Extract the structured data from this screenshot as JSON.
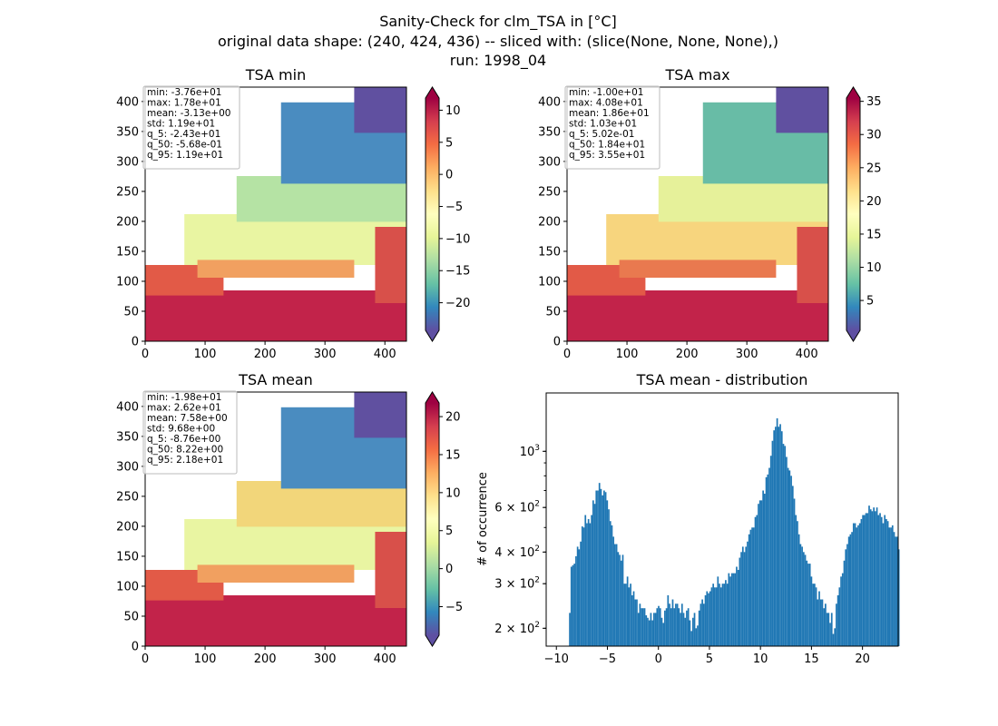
{
  "figure": {
    "title_lines": [
      "Sanity-Check for clm_TSA in [°C]",
      "original data shape: (240, 424, 436) -- sliced with: (slice(None, None, None),)",
      "run: 1998_04"
    ]
  },
  "chart_data": [
    {
      "type": "heatmap",
      "title": "TSA min",
      "xlim": [
        0,
        436
      ],
      "ylim": [
        0,
        424
      ],
      "xticks": [
        "0",
        "100",
        "200",
        "300",
        "400"
      ],
      "yticks": [
        "0",
        "50",
        "100",
        "150",
        "200",
        "250",
        "300",
        "350",
        "400"
      ],
      "colorbar": {
        "colormap": "Spectral_r",
        "vmin": -24.3,
        "vmax": 11.9,
        "ticks": [
          "−20",
          "−15",
          "−10",
          "−5",
          "0",
          "5",
          "10"
        ],
        "extend": "both"
      },
      "stats": [
        "min: -3.76e+01",
        "max: 1.78e+01",
        "mean: -3.13e+00",
        "std: 1.19e+01",
        "q_5: -2.43e+01",
        "q_50: -5.68e-01",
        "q_95: 1.19e+01"
      ]
    },
    {
      "type": "heatmap",
      "title": "TSA max",
      "xlim": [
        0,
        436
      ],
      "ylim": [
        0,
        424
      ],
      "xticks": [
        "0",
        "100",
        "200",
        "300",
        "400"
      ],
      "yticks": [
        "0",
        "50",
        "100",
        "150",
        "200",
        "250",
        "300",
        "350",
        "400"
      ],
      "colorbar": {
        "colormap": "Spectral_r",
        "vmin": 0.502,
        "vmax": 35.5,
        "ticks": [
          "5",
          "10",
          "15",
          "20",
          "25",
          "30",
          "35"
        ],
        "extend": "both"
      },
      "stats": [
        "min: -1.00e+01",
        "max: 4.08e+01",
        "mean: 1.86e+01",
        "std: 1.03e+01",
        "q_5: 5.02e-01",
        "q_50: 1.84e+01",
        "q_95: 3.55e+01"
      ]
    },
    {
      "type": "heatmap",
      "title": "TSA mean",
      "xlim": [
        0,
        436
      ],
      "ylim": [
        0,
        424
      ],
      "xticks": [
        "0",
        "100",
        "200",
        "300",
        "400"
      ],
      "yticks": [
        "0",
        "50",
        "100",
        "150",
        "200",
        "250",
        "300",
        "350",
        "400"
      ],
      "colorbar": {
        "colormap": "Spectral_r",
        "vmin": -8.76,
        "vmax": 21.8,
        "ticks": [
          "−5",
          "0",
          "5",
          "10",
          "15",
          "20"
        ],
        "extend": "both"
      },
      "stats": [
        "min: -1.98e+01",
        "max: 2.62e+01",
        "mean: 7.58e+00",
        "std: 9.68e+00",
        "q_5: -8.76e+00",
        "q_50: 8.22e+00",
        "q_95: 2.18e+01"
      ]
    },
    {
      "type": "bar",
      "title": "TSA mean - distribution",
      "ylabel": "# of occurrence",
      "yscale": "log",
      "xlim": [
        -11,
        23.5
      ],
      "ylim": [
        170,
        1700
      ],
      "color": "#1f77b4",
      "xticks": [
        "−10",
        "−5",
        "0",
        "5",
        "10",
        "15",
        "20"
      ],
      "yticks": [
        {
          "base": "2 × 10",
          "exp": "2",
          "value": 200
        },
        {
          "base": "3 × 10",
          "exp": "2",
          "value": 300
        },
        {
          "base": "4 × 10",
          "exp": "2",
          "value": 400
        },
        {
          "base": "6 × 10",
          "exp": "2",
          "value": 600
        },
        {
          "base": "10",
          "exp": "3",
          "value": 1000
        }
      ],
      "bin_start": -8.76,
      "bin_width": 0.1528,
      "values": [
        230,
        350,
        355,
        360,
        385,
        420,
        410,
        440,
        505,
        500,
        560,
        520,
        540,
        520,
        560,
        640,
        620,
        700,
        700,
        750,
        710,
        670,
        700,
        690,
        640,
        590,
        530,
        510,
        460,
        430,
        430,
        400,
        390,
        370,
        390,
        300,
        300,
        320,
        290,
        300,
        270,
        280,
        260,
        260,
        230,
        250,
        240,
        240,
        240,
        225,
        220,
        215,
        230,
        215,
        230,
        230,
        240,
        245,
        240,
        220,
        210,
        235,
        240,
        270,
        250,
        240,
        260,
        240,
        250,
        250,
        240,
        230,
        250,
        230,
        220,
        235,
        240,
        215,
        195,
        220,
        230,
        200,
        205,
        235,
        250,
        260,
        250,
        270,
        280,
        275,
        280,
        290,
        300,
        290,
        290,
        320,
        300,
        290,
        300,
        300,
        310,
        300,
        330,
        320,
        330,
        330,
        330,
        350,
        340,
        380,
        400,
        420,
        400,
        420,
        440,
        470,
        490,
        500,
        500,
        550,
        560,
        620,
        640,
        640,
        700,
        680,
        790,
        810,
        860,
        960,
        1100,
        1210,
        1250,
        1350,
        1250,
        1280,
        1200,
        1070,
        1050,
        950,
        860,
        840,
        800,
        730,
        650,
        560,
        530,
        470,
        430,
        420,
        400,
        390,
        370,
        360,
        360,
        320,
        300,
        300,
        290,
        260,
        280,
        260,
        260,
        240,
        250,
        230,
        230,
        210,
        230,
        190,
        200,
        250,
        270,
        290,
        320,
        330,
        370,
        410,
        430,
        460,
        470,
        480,
        520,
        520,
        500,
        510,
        520,
        540,
        560,
        560,
        570,
        570,
        610,
        590,
        580,
        600,
        580,
        600,
        560,
        570,
        550,
        520,
        560,
        540,
        530,
        500,
        500,
        510,
        480,
        460,
        460,
        410
      ]
    }
  ]
}
